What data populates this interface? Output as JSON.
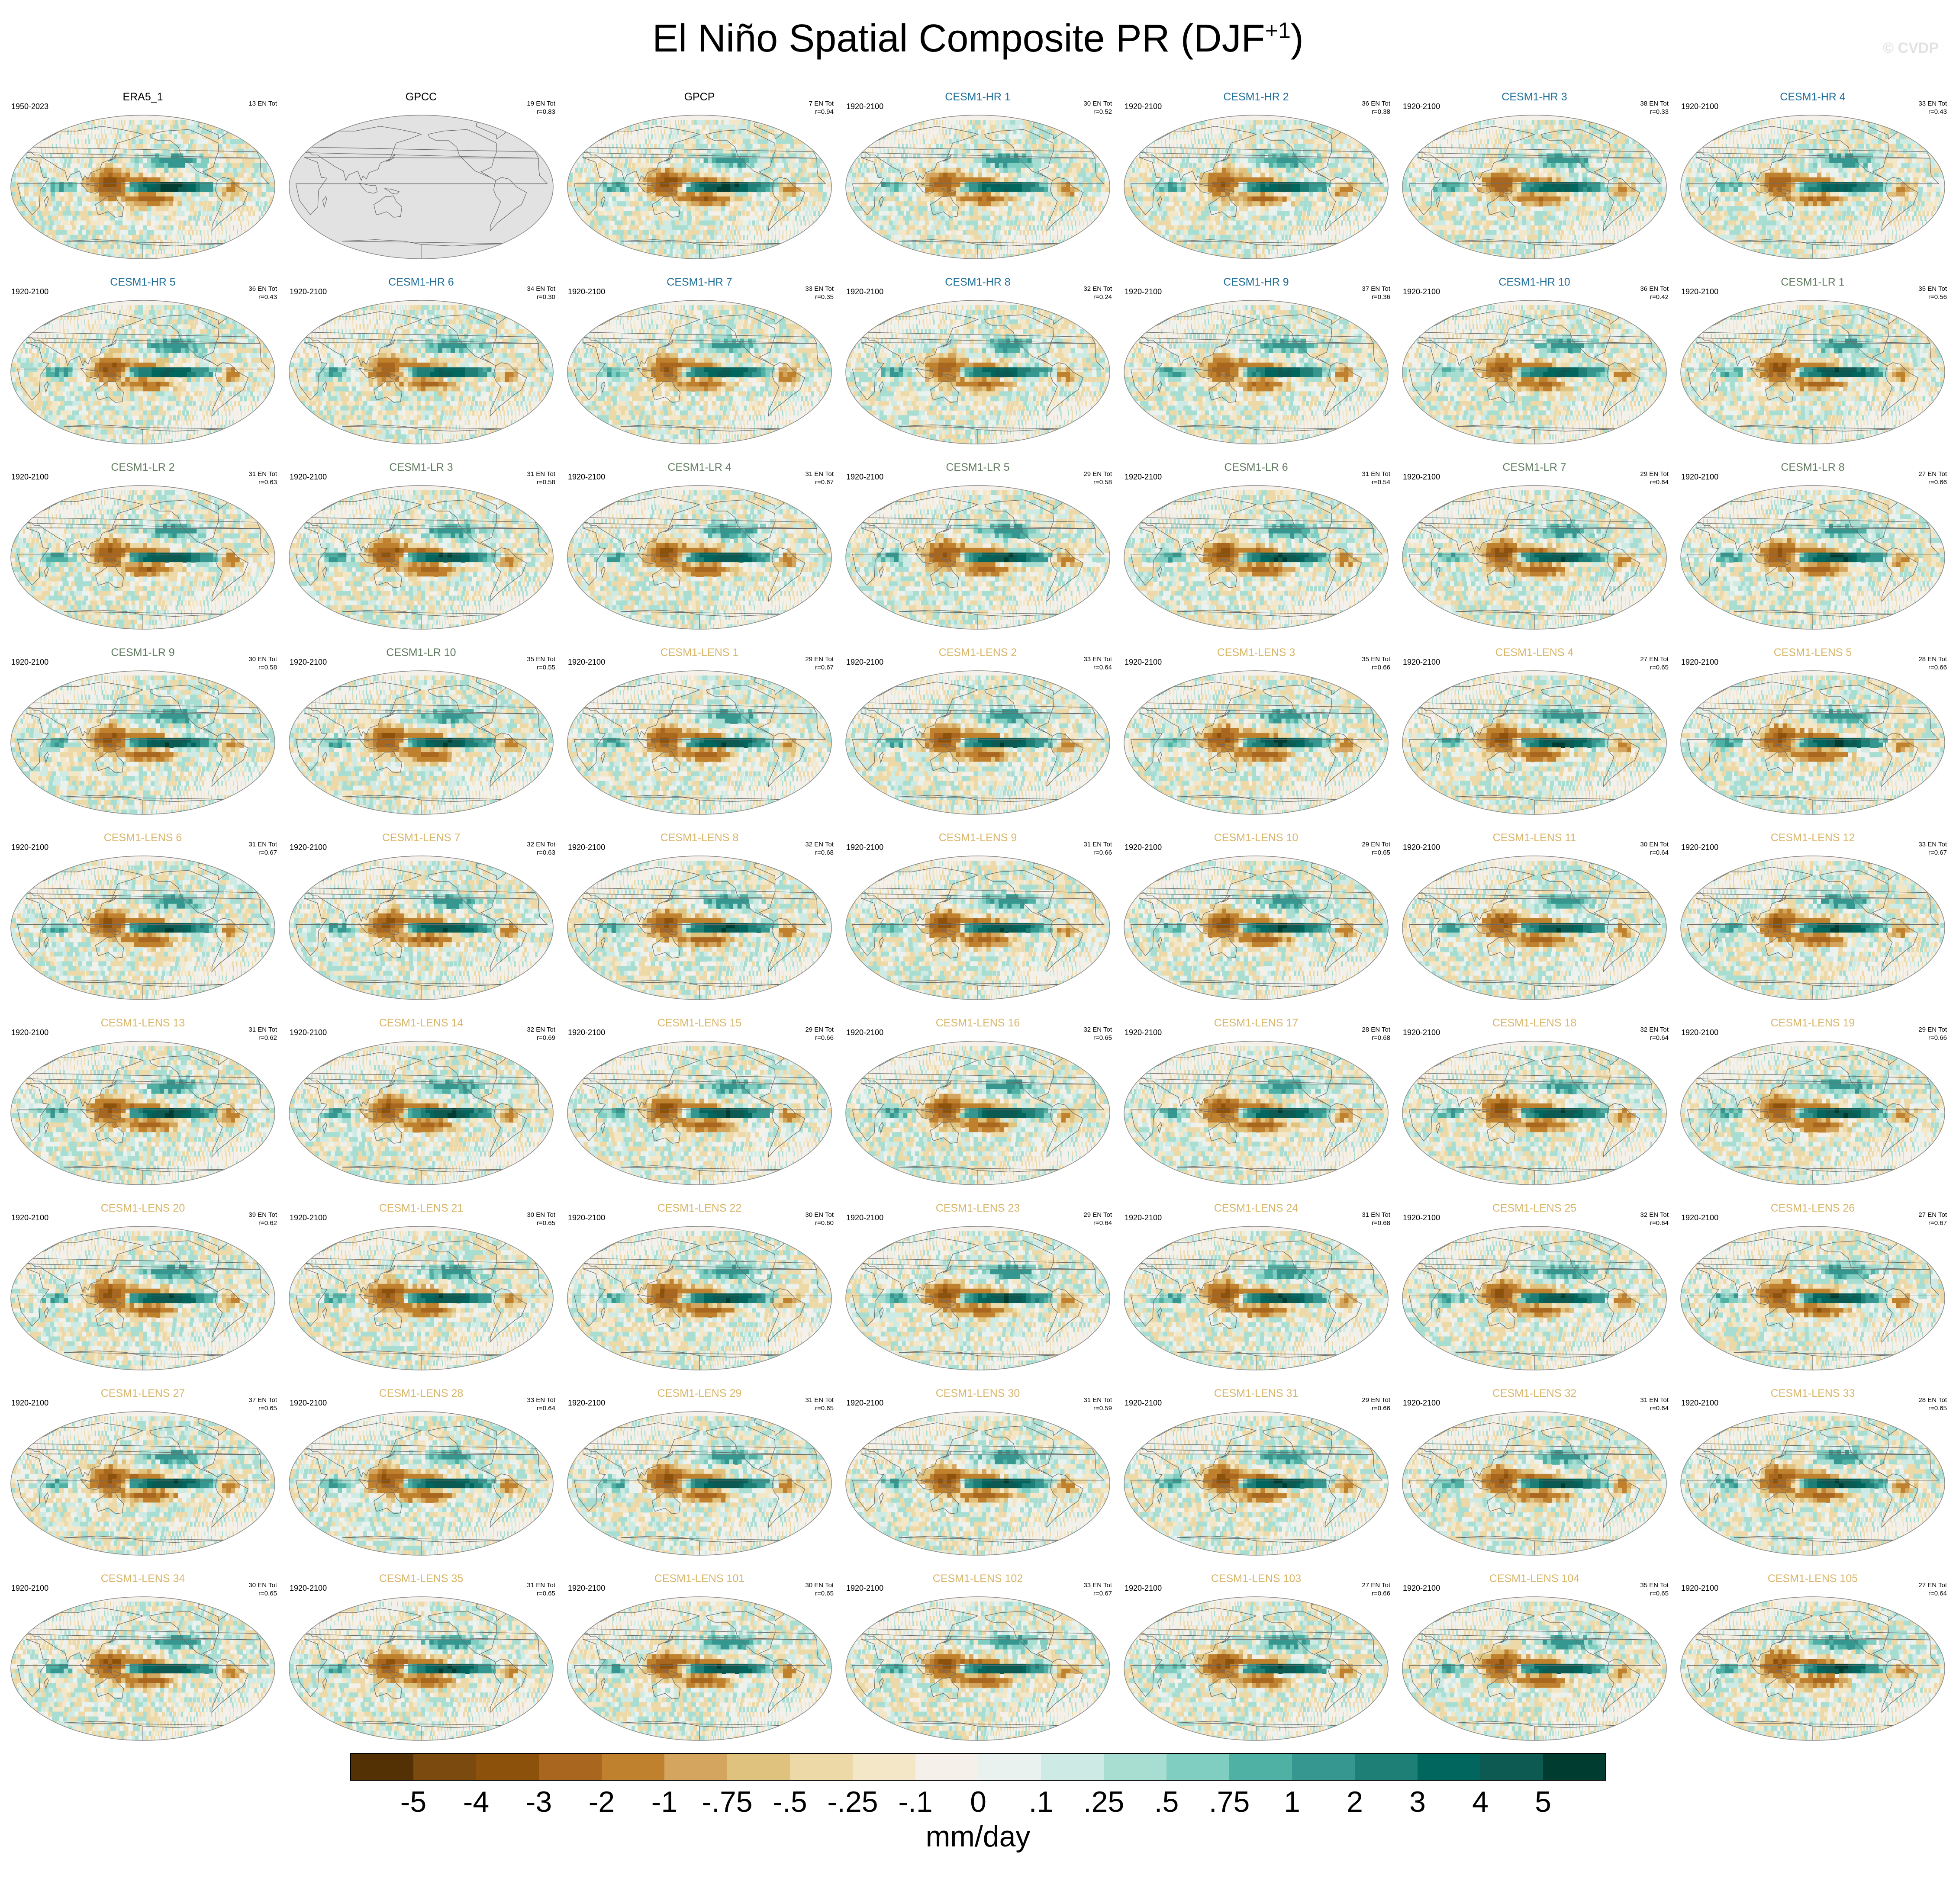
{
  "title_main": "El Niño Spatial Composite PR (DJF",
  "title_sup": "+1",
  "title_close": ")",
  "watermark": "© CVDP",
  "colors": {
    "obs_title": "#000000",
    "cesm_hr_title": "#1f6f9a",
    "cesm_lr_title": "#617b60",
    "cesm_lens_title": "#d8b66a",
    "land_outline": "#6b6b6b",
    "ocean_missing": "#e2e2e2"
  },
  "chart_data": {
    "type": "heatmap",
    "projection": "global map (Robinson-like)",
    "variable": "PR",
    "season": "DJF+1",
    "units": "mm/day",
    "colorbar": {
      "labels": [
        "-5",
        "-4",
        "-3",
        "-2",
        "-1",
        "-.75",
        "-.5",
        "-.25",
        "-.1",
        "0",
        ".1",
        ".25",
        ".5",
        ".75",
        "1",
        "2",
        "3",
        "4",
        "5"
      ],
      "colors": [
        "#543005",
        "#7a4a0e",
        "#8c510a",
        "#a8661f",
        "#bf812d",
        "#d4a55e",
        "#dfc27d",
        "#ecd9a7",
        "#f3e7c7",
        "#f5f1ea",
        "#eaf2ef",
        "#cdebe4",
        "#a8ddd2",
        "#80cdc1",
        "#4fb0a4",
        "#35978f",
        "#1e7f77",
        "#01665e",
        "#0d5a52",
        "#003c30"
      ],
      "position": "bottom"
    },
    "panels": [
      {
        "name": "ERA5_1",
        "group": "obs",
        "years": "1950-2023",
        "stats": [
          "13 EN Tot"
        ],
        "missing": false
      },
      {
        "name": "GPCC",
        "group": "obs",
        "years": "",
        "stats": [
          "19 EN Tot",
          "r=0.83"
        ],
        "missing": true
      },
      {
        "name": "GPCP",
        "group": "obs",
        "years": "",
        "stats": [
          "7 EN Tot",
          "r=0.94"
        ],
        "missing": false
      },
      {
        "name": "CESM1-HR 1",
        "group": "hr",
        "years": "1920-2100",
        "stats": [
          "30 EN Tot",
          "r=0.52"
        ],
        "missing": false
      },
      {
        "name": "CESM1-HR 2",
        "group": "hr",
        "years": "1920-2100",
        "stats": [
          "36 EN Tot",
          "r=0.38"
        ],
        "missing": false
      },
      {
        "name": "CESM1-HR 3",
        "group": "hr",
        "years": "1920-2100",
        "stats": [
          "38 EN Tot",
          "r=0.33"
        ],
        "missing": false
      },
      {
        "name": "CESM1-HR 4",
        "group": "hr",
        "years": "1920-2100",
        "stats": [
          "33 EN Tot",
          "r=0.43"
        ],
        "missing": false
      },
      {
        "name": "CESM1-HR 5",
        "group": "hr",
        "years": "1920-2100",
        "stats": [
          "36 EN Tot",
          "r=0.43"
        ],
        "missing": false
      },
      {
        "name": "CESM1-HR 6",
        "group": "hr",
        "years": "1920-2100",
        "stats": [
          "34 EN Tot",
          "r=0.30"
        ],
        "missing": false
      },
      {
        "name": "CESM1-HR 7",
        "group": "hr",
        "years": "1920-2100",
        "stats": [
          "33 EN Tot",
          "r=0.35"
        ],
        "missing": false
      },
      {
        "name": "CESM1-HR 8",
        "group": "hr",
        "years": "1920-2100",
        "stats": [
          "32 EN Tot",
          "r=0.24"
        ],
        "missing": false
      },
      {
        "name": "CESM1-HR 9",
        "group": "hr",
        "years": "1920-2100",
        "stats": [
          "37 EN Tot",
          "r=0.36"
        ],
        "missing": false
      },
      {
        "name": "CESM1-HR 10",
        "group": "hr",
        "years": "1920-2100",
        "stats": [
          "36 EN Tot",
          "r=0.42"
        ],
        "missing": false
      },
      {
        "name": "CESM1-LR 1",
        "group": "lr",
        "years": "1920-2100",
        "stats": [
          "35 EN Tot",
          "r=0.56"
        ],
        "missing": false
      },
      {
        "name": "CESM1-LR 2",
        "group": "lr",
        "years": "1920-2100",
        "stats": [
          "31 EN Tot",
          "r=0.63"
        ],
        "missing": false
      },
      {
        "name": "CESM1-LR 3",
        "group": "lr",
        "years": "1920-2100",
        "stats": [
          "31 EN Tot",
          "r=0.58"
        ],
        "missing": false
      },
      {
        "name": "CESM1-LR 4",
        "group": "lr",
        "years": "1920-2100",
        "stats": [
          "31 EN Tot",
          "r=0.67"
        ],
        "missing": false
      },
      {
        "name": "CESM1-LR 5",
        "group": "lr",
        "years": "1920-2100",
        "stats": [
          "29 EN Tot",
          "r=0.58"
        ],
        "missing": false
      },
      {
        "name": "CESM1-LR 6",
        "group": "lr",
        "years": "1920-2100",
        "stats": [
          "31 EN Tot",
          "r=0.54"
        ],
        "missing": false
      },
      {
        "name": "CESM1-LR 7",
        "group": "lr",
        "years": "1920-2100",
        "stats": [
          "29 EN Tot",
          "r=0.64"
        ],
        "missing": false
      },
      {
        "name": "CESM1-LR 8",
        "group": "lr",
        "years": "1920-2100",
        "stats": [
          "27 EN Tot",
          "r=0.66"
        ],
        "missing": false
      },
      {
        "name": "CESM1-LR 9",
        "group": "lr",
        "years": "1920-2100",
        "stats": [
          "30 EN Tot",
          "r=0.58"
        ],
        "missing": false
      },
      {
        "name": "CESM1-LR 10",
        "group": "lr",
        "years": "1920-2100",
        "stats": [
          "35 EN Tot",
          "r=0.55"
        ],
        "missing": false
      },
      {
        "name": "CESM1-LENS 1",
        "group": "lens",
        "years": "1920-2100",
        "stats": [
          "29 EN Tot",
          "r=0.67"
        ],
        "missing": false
      },
      {
        "name": "CESM1-LENS 2",
        "group": "lens",
        "years": "1920-2100",
        "stats": [
          "33 EN Tot",
          "r=0.64"
        ],
        "missing": false
      },
      {
        "name": "CESM1-LENS 3",
        "group": "lens",
        "years": "1920-2100",
        "stats": [
          "35 EN Tot",
          "r=0.66"
        ],
        "missing": false
      },
      {
        "name": "CESM1-LENS 4",
        "group": "lens",
        "years": "1920-2100",
        "stats": [
          "27 EN Tot",
          "r=0.65"
        ],
        "missing": false
      },
      {
        "name": "CESM1-LENS 5",
        "group": "lens",
        "years": "1920-2100",
        "stats": [
          "28 EN Tot",
          "r=0.66"
        ],
        "missing": false
      },
      {
        "name": "CESM1-LENS 6",
        "group": "lens",
        "years": "1920-2100",
        "stats": [
          "31 EN Tot",
          "r=0.67"
        ],
        "missing": false
      },
      {
        "name": "CESM1-LENS 7",
        "group": "lens",
        "years": "1920-2100",
        "stats": [
          "32 EN Tot",
          "r=0.63"
        ],
        "missing": false
      },
      {
        "name": "CESM1-LENS 8",
        "group": "lens",
        "years": "1920-2100",
        "stats": [
          "32 EN Tot",
          "r=0.68"
        ],
        "missing": false
      },
      {
        "name": "CESM1-LENS 9",
        "group": "lens",
        "years": "1920-2100",
        "stats": [
          "31 EN Tot",
          "r=0.66"
        ],
        "missing": false
      },
      {
        "name": "CESM1-LENS 10",
        "group": "lens",
        "years": "1920-2100",
        "stats": [
          "29 EN Tot",
          "r=0.65"
        ],
        "missing": false
      },
      {
        "name": "CESM1-LENS 11",
        "group": "lens",
        "years": "1920-2100",
        "stats": [
          "30 EN Tot",
          "r=0.64"
        ],
        "missing": false
      },
      {
        "name": "CESM1-LENS 12",
        "group": "lens",
        "years": "1920-2100",
        "stats": [
          "33 EN Tot",
          "r=0.67"
        ],
        "missing": false
      },
      {
        "name": "CESM1-LENS 13",
        "group": "lens",
        "years": "1920-2100",
        "stats": [
          "31 EN Tot",
          "r=0.62"
        ],
        "missing": false
      },
      {
        "name": "CESM1-LENS 14",
        "group": "lens",
        "years": "1920-2100",
        "stats": [
          "32 EN Tot",
          "r=0.69"
        ],
        "missing": false
      },
      {
        "name": "CESM1-LENS 15",
        "group": "lens",
        "years": "1920-2100",
        "stats": [
          "29 EN Tot",
          "r=0.66"
        ],
        "missing": false
      },
      {
        "name": "CESM1-LENS 16",
        "group": "lens",
        "years": "1920-2100",
        "stats": [
          "32 EN Tot",
          "r=0.65"
        ],
        "missing": false
      },
      {
        "name": "CESM1-LENS 17",
        "group": "lens",
        "years": "1920-2100",
        "stats": [
          "28 EN Tot",
          "r=0.68"
        ],
        "missing": false
      },
      {
        "name": "CESM1-LENS 18",
        "group": "lens",
        "years": "1920-2100",
        "stats": [
          "32 EN Tot",
          "r=0.64"
        ],
        "missing": false
      },
      {
        "name": "CESM1-LENS 19",
        "group": "lens",
        "years": "1920-2100",
        "stats": [
          "29 EN Tot",
          "r=0.66"
        ],
        "missing": false
      },
      {
        "name": "CESM1-LENS 20",
        "group": "lens",
        "years": "1920-2100",
        "stats": [
          "39 EN Tot",
          "r=0.62"
        ],
        "missing": false
      },
      {
        "name": "CESM1-LENS 21",
        "group": "lens",
        "years": "1920-2100",
        "stats": [
          "30 EN Tot",
          "r=0.65"
        ],
        "missing": false
      },
      {
        "name": "CESM1-LENS 22",
        "group": "lens",
        "years": "1920-2100",
        "stats": [
          "30 EN Tot",
          "r=0.60"
        ],
        "missing": false
      },
      {
        "name": "CESM1-LENS 23",
        "group": "lens",
        "years": "1920-2100",
        "stats": [
          "29 EN Tot",
          "r=0.64"
        ],
        "missing": false
      },
      {
        "name": "CESM1-LENS 24",
        "group": "lens",
        "years": "1920-2100",
        "stats": [
          "31 EN Tot",
          "r=0.68"
        ],
        "missing": false
      },
      {
        "name": "CESM1-LENS 25",
        "group": "lens",
        "years": "1920-2100",
        "stats": [
          "32 EN Tot",
          "r=0.64"
        ],
        "missing": false
      },
      {
        "name": "CESM1-LENS 26",
        "group": "lens",
        "years": "1920-2100",
        "stats": [
          "27 EN Tot",
          "r=0.67"
        ],
        "missing": false
      },
      {
        "name": "CESM1-LENS 27",
        "group": "lens",
        "years": "1920-2100",
        "stats": [
          "37 EN Tot",
          "r=0.65"
        ],
        "missing": false
      },
      {
        "name": "CESM1-LENS 28",
        "group": "lens",
        "years": "1920-2100",
        "stats": [
          "33 EN Tot",
          "r=0.64"
        ],
        "missing": false
      },
      {
        "name": "CESM1-LENS 29",
        "group": "lens",
        "years": "1920-2100",
        "stats": [
          "31 EN Tot",
          "r=0.65"
        ],
        "missing": false
      },
      {
        "name": "CESM1-LENS 30",
        "group": "lens",
        "years": "1920-2100",
        "stats": [
          "31 EN Tot",
          "r=0.59"
        ],
        "missing": false
      },
      {
        "name": "CESM1-LENS 31",
        "group": "lens",
        "years": "1920-2100",
        "stats": [
          "29 EN Tot",
          "r=0.66"
        ],
        "missing": false
      },
      {
        "name": "CESM1-LENS 32",
        "group": "lens",
        "years": "1920-2100",
        "stats": [
          "31 EN Tot",
          "r=0.64"
        ],
        "missing": false
      },
      {
        "name": "CESM1-LENS 33",
        "group": "lens",
        "years": "1920-2100",
        "stats": [
          "28 EN Tot",
          "r=0.65"
        ],
        "missing": false
      },
      {
        "name": "CESM1-LENS 34",
        "group": "lens",
        "years": "1920-2100",
        "stats": [
          "30 EN Tot",
          "r=0.65"
        ],
        "missing": false
      },
      {
        "name": "CESM1-LENS 35",
        "group": "lens",
        "years": "1920-2100",
        "stats": [
          "31 EN Tot",
          "r=0.65"
        ],
        "missing": false
      },
      {
        "name": "CESM1-LENS 101",
        "group": "lens",
        "years": "1920-2100",
        "stats": [
          "30 EN Tot",
          "r=0.65"
        ],
        "missing": false
      },
      {
        "name": "CESM1-LENS 102",
        "group": "lens",
        "years": "1920-2100",
        "stats": [
          "33 EN Tot",
          "r=0.67"
        ],
        "missing": false
      },
      {
        "name": "CESM1-LENS 103",
        "group": "lens",
        "years": "1920-2100",
        "stats": [
          "27 EN Tot",
          "r=0.66"
        ],
        "missing": false
      },
      {
        "name": "CESM1-LENS 104",
        "group": "lens",
        "years": "1920-2100",
        "stats": [
          "35 EN Tot",
          "r=0.65"
        ],
        "missing": false
      },
      {
        "name": "CESM1-LENS 105",
        "group": "lens",
        "years": "1920-2100",
        "stats": [
          "27 EN Tot",
          "r=0.64"
        ],
        "missing": false
      }
    ]
  }
}
